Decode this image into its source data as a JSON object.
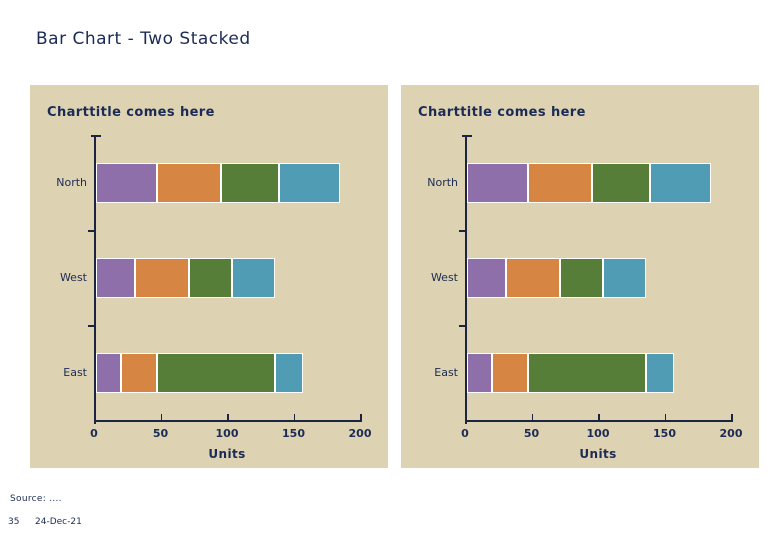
{
  "slide": {
    "title": "Bar Chart - Two Stacked"
  },
  "palette": {
    "panel_background": "#ddd2b2",
    "text_navy": "#1c2b55",
    "axis": "#1b2440"
  },
  "chart_data": [
    {
      "type": "bar",
      "orientation": "horizontal-stacked",
      "title": "Charttitle comes here",
      "categories": [
        "North",
        "West",
        "East"
      ],
      "series": [
        {
          "name": "segment-1",
          "color": "#8f6fa9",
          "values": [
            46,
            30,
            19
          ]
        },
        {
          "name": "segment-2",
          "color": "#d68542",
          "values": [
            48,
            40,
            27
          ]
        },
        {
          "name": "segment-3",
          "color": "#567e38",
          "values": [
            44,
            33,
            89
          ]
        },
        {
          "name": "segment-4",
          "color": "#4f9cb4",
          "values": [
            46,
            32,
            21
          ]
        }
      ],
      "xlabel": "Units",
      "xticks": [
        0,
        50,
        100,
        150,
        200
      ],
      "xlim": [
        0,
        200
      ],
      "grid": false,
      "legend": "none"
    },
    {
      "type": "bar",
      "orientation": "horizontal-stacked",
      "title": "Charttitle comes here",
      "categories": [
        "North",
        "West",
        "East"
      ],
      "series": [
        {
          "name": "segment-1",
          "color": "#8f6fa9",
          "values": [
            46,
            30,
            19
          ]
        },
        {
          "name": "segment-2",
          "color": "#d68542",
          "values": [
            48,
            40,
            27
          ]
        },
        {
          "name": "segment-3",
          "color": "#567e38",
          "values": [
            44,
            33,
            89
          ]
        },
        {
          "name": "segment-4",
          "color": "#4f9cb4",
          "values": [
            46,
            32,
            21
          ]
        }
      ],
      "xlabel": "Units",
      "xticks": [
        0,
        50,
        100,
        150,
        200
      ],
      "xlim": [
        0,
        200
      ],
      "grid": false,
      "legend": "none"
    }
  ],
  "footer": {
    "source": "Source: ....",
    "page_number": "35",
    "date": "24-Dec-21"
  }
}
